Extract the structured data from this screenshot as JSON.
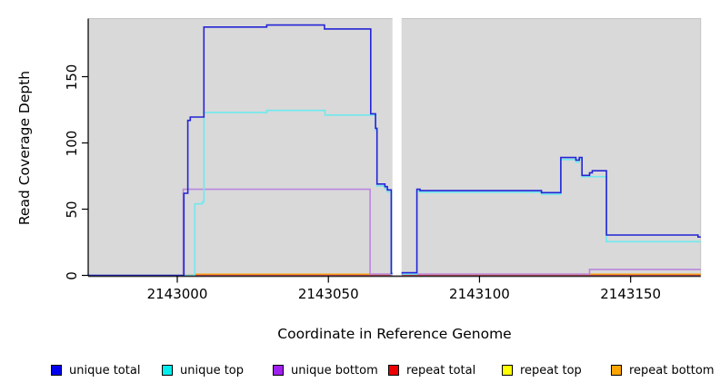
{
  "chart_data": {
    "type": "line",
    "step": true,
    "title": "",
    "xlabel": "Coordinate in Reference Genome",
    "ylabel": "Read Coverage Depth",
    "xlim": [
      2142970.6,
      2143173.2
    ],
    "ylim": [
      0,
      193
    ],
    "grid": false,
    "panel_background": "#d9d9d9",
    "panel_border_color": "#c3c3c3",
    "axis_color": "#000000",
    "x_ticks": [
      {
        "label": "2143000",
        "value": 2143000
      },
      {
        "label": "2143050",
        "value": 2143050
      },
      {
        "label": "2143100",
        "value": 2143100
      },
      {
        "label": "2143150",
        "value": 2143150
      }
    ],
    "y_ticks": [
      {
        "label": "0",
        "value": 0
      },
      {
        "label": "50",
        "value": 50
      },
      {
        "label": "100",
        "value": 100
      },
      {
        "label": "150",
        "value": 150
      }
    ],
    "gap": {
      "x_start": 2143071.2,
      "x_end": 2143074.2,
      "color": "#ffffff"
    },
    "series": [
      {
        "name": "repeat top",
        "color": "#ffff00",
        "points": [
          [
            2142970.6,
            0
          ]
        ]
      },
      {
        "name": "repeat bottom",
        "color": "#ffa500",
        "points": [
          [
            2142970.6,
            0
          ],
          [
            2143005.8,
            0.8
          ],
          [
            2143071.0,
            0
          ],
          [
            2143136.4,
            0.8
          ]
        ]
      },
      {
        "name": "repeat total",
        "color": "#e0506e",
        "points": [
          [
            2142970.6,
            0
          ]
        ]
      },
      {
        "name": "unique bottom",
        "color": "#bb86e0",
        "points": [
          [
            2142970.6,
            0
          ],
          [
            2143002.0,
            65
          ],
          [
            2143063.8,
            1
          ],
          [
            2143136.4,
            4.5
          ]
        ]
      },
      {
        "name": "unique top",
        "color": "#6fe9ee",
        "points": [
          [
            2142970.6,
            0
          ],
          [
            2143005.8,
            54
          ],
          [
            2143008.3,
            55.5
          ],
          [
            2143008.8,
            123
          ],
          [
            2143029.6,
            124.5
          ],
          [
            2143048.9,
            121
          ],
          [
            2143065.6,
            109.5
          ],
          [
            2143066.1,
            67.5
          ],
          [
            2143068.7,
            65.5
          ],
          [
            2143069.5,
            63
          ],
          [
            2143070.8,
            0.8
          ],
          [
            2143074.2,
            1
          ],
          [
            2143079.3,
            63.5
          ],
          [
            2143080.3,
            62.8
          ],
          [
            2143120.5,
            61.2
          ],
          [
            2143126.9,
            87.5
          ],
          [
            2143131.9,
            85.5
          ],
          [
            2143133.0,
            87.5
          ],
          [
            2143133.9,
            74.5
          ],
          [
            2143142.0,
            25.5
          ]
        ]
      },
      {
        "name": "unique total",
        "color": "#2424d6",
        "points": [
          [
            2142970.6,
            0
          ],
          [
            2143002.2,
            62
          ],
          [
            2143003.5,
            117
          ],
          [
            2143004.3,
            119.5
          ],
          [
            2143008.8,
            187.5
          ],
          [
            2143029.6,
            189
          ],
          [
            2143048.7,
            186
          ],
          [
            2143064.0,
            122
          ],
          [
            2143065.6,
            111
          ],
          [
            2143066.1,
            69
          ],
          [
            2143068.7,
            67
          ],
          [
            2143069.5,
            64.5
          ],
          [
            2143070.8,
            1.5
          ],
          [
            2143074.2,
            2
          ],
          [
            2143079.3,
            65
          ],
          [
            2143080.3,
            64
          ],
          [
            2143120.5,
            62.5
          ],
          [
            2143126.9,
            89
          ],
          [
            2143131.9,
            87
          ],
          [
            2143133.0,
            89
          ],
          [
            2143133.9,
            75.5
          ],
          [
            2143136.4,
            77.5
          ],
          [
            2143137.3,
            79
          ],
          [
            2143142.0,
            30.5
          ],
          [
            2143172.3,
            29
          ]
        ]
      }
    ],
    "legend": [
      {
        "label": "unique total",
        "color": "#0000ee"
      },
      {
        "label": "unique top",
        "color": "#00eeee"
      },
      {
        "label": "unique bottom",
        "color": "#a020f0"
      },
      {
        "label": "repeat total",
        "color": "#ee0000"
      },
      {
        "label": "repeat top",
        "color": "#ffff00"
      },
      {
        "label": "repeat bottom",
        "color": "#ffa500"
      }
    ]
  }
}
